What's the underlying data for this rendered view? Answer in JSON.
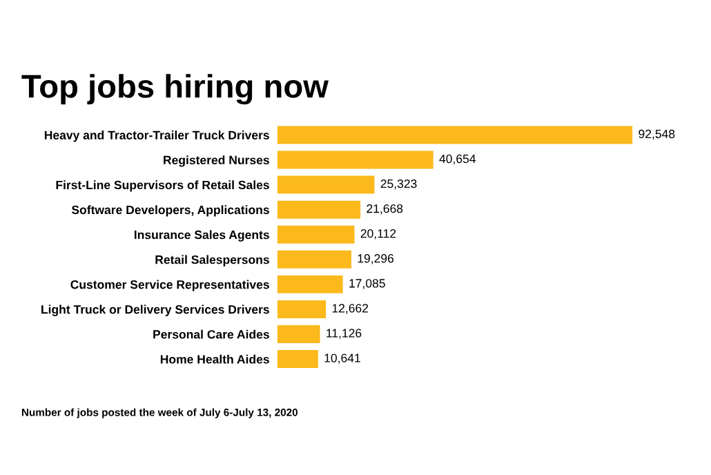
{
  "chart_data": {
    "type": "bar",
    "orientation": "horizontal",
    "title": "Top jobs hiring now",
    "categories": [
      "Heavy and Tractor-Trailer Truck Drivers",
      "Registered Nurses",
      "First-Line Supervisors of Retail Sales",
      "Software Developers, Applications",
      "Insurance Sales Agents",
      "Retail Salespersons",
      "Customer Service Representatives",
      "Light Truck or Delivery Services Drivers",
      "Personal Care Aides",
      "Home Health Aides"
    ],
    "values": [
      92548,
      40654,
      25323,
      21668,
      20112,
      19296,
      17085,
      12662,
      11126,
      10641
    ],
    "value_labels": [
      "92,548",
      "40,654",
      "25,323",
      "21,668",
      "20,112",
      "19,296",
      "17,085",
      "12,662",
      "11,126",
      "10,641"
    ],
    "color": "#fbb91c",
    "tick_labels": "y",
    "grid": false,
    "legend": false,
    "annotations": [
      "Number of jobs posted the week of July 6-July 13, 2020"
    ]
  }
}
